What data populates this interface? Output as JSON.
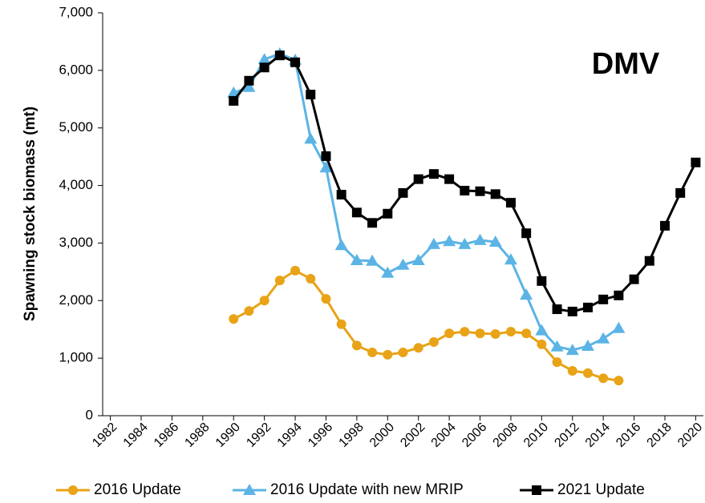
{
  "chart_data": {
    "type": "line",
    "annotation": "DMV",
    "y_label": "Spawning stock biomass (mt)",
    "x": [
      1990,
      1991,
      1992,
      1993,
      1994,
      1995,
      1996,
      1997,
      1998,
      1999,
      2000,
      2001,
      2002,
      2003,
      2004,
      2005,
      2006,
      2007,
      2008,
      2009,
      2010,
      2011,
      2012,
      2013,
      2014,
      2015,
      2016,
      2017,
      2018,
      2019,
      2020
    ],
    "series": [
      {
        "name": "2016 Update",
        "color": "#e8a317",
        "marker": "circle",
        "values": [
          1680,
          1820,
          2000,
          2350,
          2520,
          2380,
          2030,
          1590,
          1220,
          1100,
          1060,
          1100,
          1180,
          1280,
          1430,
          1460,
          1430,
          1420,
          1460,
          1430,
          1240,
          930,
          780,
          740,
          650,
          610,
          null,
          null,
          null,
          null,
          null
        ]
      },
      {
        "name": "2016 Update with new MRIP",
        "color": "#5bb4e5",
        "marker": "triangle",
        "values": [
          5610,
          5710,
          6190,
          6290,
          6180,
          4810,
          4310,
          2960,
          2700,
          2690,
          2480,
          2620,
          2700,
          2980,
          3030,
          2980,
          3050,
          3020,
          2710,
          2100,
          1480,
          1200,
          1140,
          1210,
          1340,
          1520,
          null,
          null,
          null,
          null,
          null
        ]
      },
      {
        "name": "2021 Update",
        "color": "#000000",
        "marker": "square",
        "values": [
          5470,
          5820,
          6050,
          6260,
          6140,
          5580,
          4510,
          3840,
          3530,
          3350,
          3510,
          3870,
          4110,
          4200,
          4110,
          3910,
          3900,
          3850,
          3700,
          3170,
          2340,
          1850,
          1810,
          1880,
          2020,
          2090,
          2370,
          2690,
          3300,
          3870,
          4400
        ]
      }
    ],
    "xlim": [
      1981.5,
      2020.5
    ],
    "xticks": [
      1982,
      1984,
      1986,
      1988,
      1990,
      1992,
      1994,
      1996,
      1998,
      2000,
      2002,
      2004,
      2006,
      2008,
      2010,
      2012,
      2014,
      2016,
      2018,
      2020
    ],
    "ylim": [
      0,
      7000
    ],
    "yticks": [
      0,
      {
        "value": 1000,
        "label": "1,000"
      },
      {
        "value": 2000,
        "label": "2,000"
      },
      {
        "value": 3000,
        "label": "3,000"
      },
      {
        "value": 4000,
        "label": "4,000"
      },
      {
        "value": 5000,
        "label": "5,000"
      },
      {
        "value": 6000,
        "label": "6,000"
      },
      {
        "value": 7000,
        "label": "7,000"
      }
    ],
    "legend": "bottom"
  }
}
